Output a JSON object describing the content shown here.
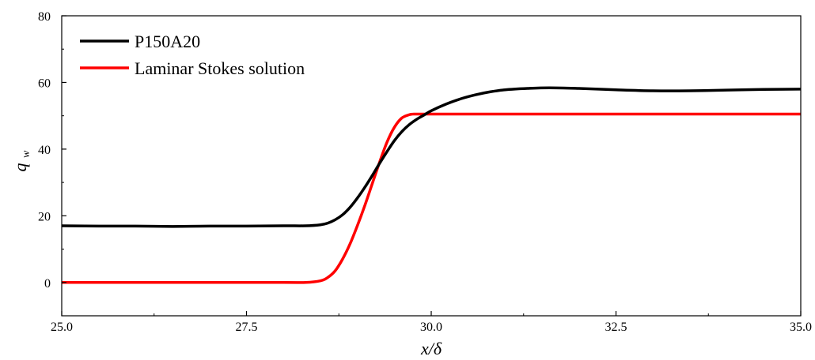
{
  "chart_data": {
    "type": "line",
    "title": "",
    "xlabel": "x/δ",
    "ylabel": "q",
    "ylabel_subscript": "w",
    "xlim": [
      25.0,
      35.0
    ],
    "ylim": [
      -10,
      80
    ],
    "x_ticks": [
      25.0,
      27.5,
      30.0,
      32.5,
      35.0
    ],
    "x_tick_labels": [
      "25.0",
      "27.5",
      "30.0",
      "32.5",
      "35.0"
    ],
    "y_ticks": [
      0,
      20,
      40,
      60,
      80
    ],
    "y_tick_labels": [
      "0",
      "20",
      "40",
      "60",
      "80"
    ],
    "grid": false,
    "legend_position": "top-left",
    "series": [
      {
        "name": "P150A20",
        "color": "#000000",
        "x": [
          25.0,
          25.5,
          26.0,
          26.5,
          27.0,
          27.5,
          28.0,
          28.3,
          28.5,
          28.6,
          28.7,
          28.8,
          28.9,
          29.0,
          29.1,
          29.2,
          29.3,
          29.4,
          29.5,
          29.6,
          29.7,
          29.8,
          29.9,
          30.0,
          30.2,
          30.4,
          30.6,
          30.8,
          31.0,
          31.3,
          31.6,
          32.0,
          32.5,
          33.0,
          33.5,
          34.0,
          34.5,
          35.0
        ],
        "y": [
          17.0,
          16.9,
          16.9,
          16.8,
          16.9,
          16.9,
          17.0,
          17.0,
          17.3,
          17.8,
          18.8,
          20.3,
          22.5,
          25.3,
          28.5,
          32.0,
          35.7,
          39.2,
          42.5,
          45.2,
          47.3,
          48.9,
          50.2,
          51.5,
          53.5,
          55.1,
          56.3,
          57.2,
          57.8,
          58.2,
          58.4,
          58.2,
          57.8,
          57.5,
          57.5,
          57.7,
          57.9,
          58.0
        ]
      },
      {
        "name": "Laminar Stokes solution",
        "color": "#ff0000",
        "x": [
          25.0,
          26.0,
          27.0,
          28.0,
          28.3,
          28.5,
          28.6,
          28.7,
          28.8,
          28.9,
          29.0,
          29.1,
          29.2,
          29.3,
          29.4,
          29.5,
          29.6,
          29.7,
          29.75,
          29.8,
          30.0,
          31.0,
          32.0,
          33.0,
          34.0,
          35.0
        ],
        "y": [
          0.0,
          0.0,
          0.0,
          0.0,
          0.0,
          0.5,
          1.5,
          3.5,
          7.0,
          11.5,
          17.0,
          23.0,
          29.5,
          36.0,
          42.0,
          46.5,
          49.3,
          50.3,
          50.5,
          50.5,
          50.5,
          50.5,
          50.5,
          50.5,
          50.5,
          50.5
        ]
      }
    ]
  }
}
